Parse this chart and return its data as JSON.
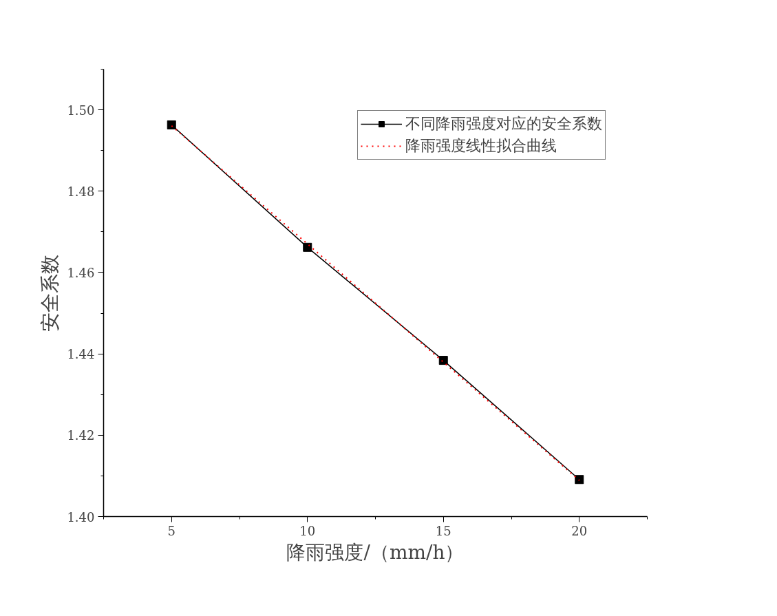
{
  "chart_data": {
    "type": "line",
    "xlabel": "降雨强度/（mm/h）",
    "ylabel": "安全系数",
    "xlim": [
      2.5,
      22.5
    ],
    "xticks": [
      5,
      10,
      15,
      20
    ],
    "ylim": [
      1.4,
      1.51
    ],
    "yticks": [
      {
        "value": 1.4,
        "label": "1.40"
      },
      {
        "value": 1.42,
        "label": "1.42"
      },
      {
        "value": 1.44,
        "label": "1.44"
      },
      {
        "value": 1.46,
        "label": "1.46"
      },
      {
        "value": 1.48,
        "label": "1.48"
      },
      {
        "value": 1.5,
        "label": "1.50"
      }
    ],
    "grid": false,
    "legend": "top right",
    "series": [
      {
        "name": "不同降雨强度对应的安全系数",
        "color": "#000000",
        "x": [
          5,
          10,
          15,
          20
        ],
        "values": [
          1.4963,
          1.4662,
          1.4384,
          1.4091
        ],
        "marker": "square",
        "line_style": "solid"
      },
      {
        "name": "降雨强度线性拟合曲线",
        "color": "#ff0000",
        "x": [
          5,
          20
        ],
        "values": [
          1.4961,
          1.4089
        ],
        "marker": "none",
        "line_style": "dotted"
      }
    ]
  }
}
